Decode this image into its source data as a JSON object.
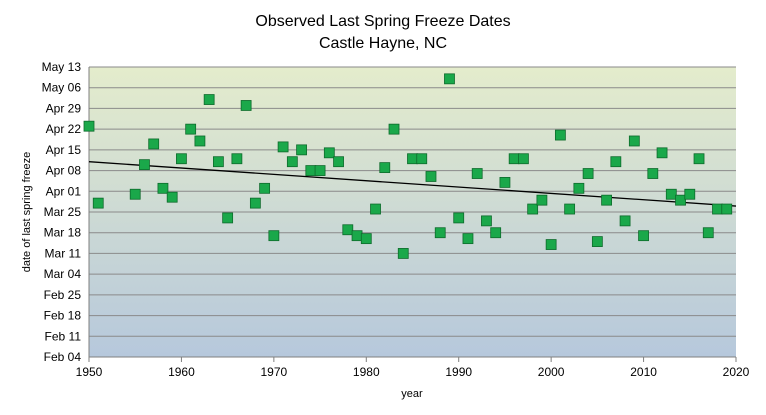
{
  "chart_data": {
    "type": "scatter",
    "title": "Observed  Last Spring Freeze Dates",
    "subtitle": "Castle Hayne, NC",
    "xlabel": "year",
    "ylabel": "date of last spring freeze",
    "xlim": [
      1950,
      2020
    ],
    "x_ticks": [
      1950,
      1960,
      1970,
      1980,
      1990,
      2000,
      2010,
      2020
    ],
    "ylim": [
      "Feb 04",
      "May 13"
    ],
    "y_ticks": [
      "May 13",
      "May 06",
      "Apr 29",
      "Apr 22",
      "Apr 15",
      "Apr 08",
      "Apr 01",
      "Mar 25",
      "Mar 18",
      "Mar 11",
      "Mar 04",
      "Feb 25",
      "Feb 18",
      "Feb 11",
      "Feb 04"
    ],
    "grid": true,
    "legend": "none",
    "colors": {
      "marker_fill": "#1aa84a",
      "marker_edge": "#0e6b2c",
      "trend": "#000000",
      "bg_top": "#e4eccc",
      "bg_bottom": "#b6c8dc",
      "gridline": "#8a8a8a"
    },
    "series": [
      {
        "x": [
          1950,
          1951,
          1955,
          1956,
          1957,
          1958,
          1959,
          1960,
          1961,
          1962,
          1963,
          1964,
          1965,
          1966,
          1967,
          1968,
          1969,
          1970,
          1971,
          1972,
          1973,
          1974,
          1975,
          1976,
          1977,
          1978,
          1979,
          1980,
          1981,
          1982,
          1983,
          1984,
          1985,
          1986,
          1987,
          1988,
          1989,
          1990,
          1991,
          1992,
          1993,
          1994,
          1995,
          1996,
          1997,
          1998,
          1999,
          2000,
          2001,
          2002,
          2003,
          2004,
          2005,
          2006,
          2007,
          2008,
          2009,
          2010,
          2011,
          2012,
          2013,
          2014,
          2015,
          2016,
          2017,
          2018,
          2019
        ],
        "y": [
          "Apr 23",
          "Mar 28",
          "Mar 31",
          "Apr 10",
          "Apr 17",
          "Apr 02",
          "Mar 30",
          "Apr 12",
          "Apr 22",
          "Apr 18",
          "May 02",
          "Apr 11",
          "Mar 23",
          "Apr 12",
          "Apr 30",
          "Mar 28",
          "Apr 02",
          "Mar 17",
          "Apr 16",
          "Apr 11",
          "Apr 15",
          "Apr 08",
          "Apr 08",
          "Apr 14",
          "Apr 11",
          "Mar 19",
          "Mar 17",
          "Mar 16",
          "Mar 26",
          "Apr 09",
          "Apr 22",
          "Mar 11",
          "Apr 12",
          "Apr 12",
          "Apr 06",
          "Mar 18",
          "May 09",
          "Mar 23",
          "Mar 16",
          "Apr 07",
          "Mar 22",
          "Mar 18",
          "Apr 04",
          "Apr 12",
          "Apr 12",
          "Mar 26",
          "Mar 29",
          "Mar 14",
          "Apr 20",
          "Mar 26",
          "Apr 02",
          "Apr 07",
          "Mar 15",
          "Mar 29",
          "Apr 11",
          "Mar 22",
          "Apr 18",
          "Mar 17",
          "Apr 07",
          "Apr 14",
          "Mar 31",
          "Mar 29",
          "Mar 31",
          "Apr 12",
          "Mar 18",
          "Mar 26",
          "Mar 26"
        ]
      }
    ],
    "trendline": {
      "x": [
        1950,
        2020
      ],
      "y": [
        "Apr 11",
        "Mar 27"
      ]
    }
  }
}
